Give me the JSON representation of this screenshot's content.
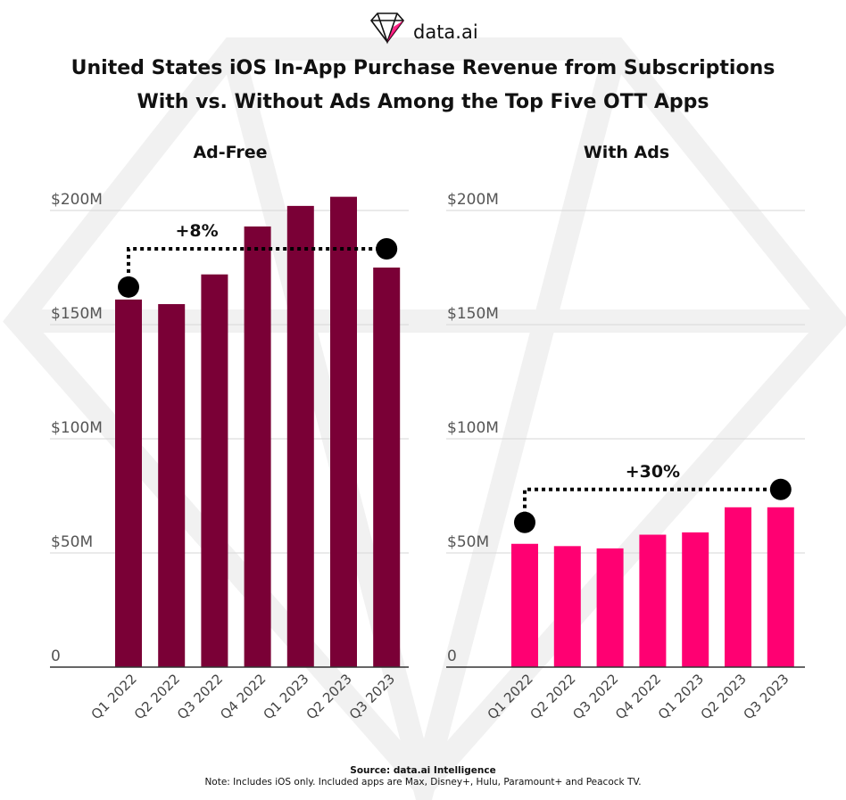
{
  "brand": {
    "name": "data.ai",
    "icon": "diamond-logo-icon"
  },
  "title_line1": "United States iOS In-App Purchase Revenue from Subscriptions",
  "title_line2": "With vs. Without Ads Among the Top Five OTT Apps",
  "footer": {
    "source": "Source: data.ai Intelligence",
    "note": "Note: Includes iOS only. Included apps are Max, Disney+, Hulu, Paramount+ and Peacock TV."
  },
  "chart_data": [
    {
      "type": "bar",
      "title": "Ad-Free",
      "categories": [
        "Q1 2022",
        "Q2 2022",
        "Q3 2022",
        "Q4 2022",
        "Q1 2023",
        "Q2 2023",
        "Q3 2023"
      ],
      "values": [
        161,
        159,
        172,
        193,
        202,
        206,
        175
      ],
      "unit": "$M",
      "ylim": [
        0,
        200
      ],
      "yticks": [
        {
          "value": 0,
          "label": "0"
        },
        {
          "value": 50,
          "label": "$50M"
        },
        {
          "value": 100,
          "label": "$100M"
        },
        {
          "value": 150,
          "label": "$150M"
        },
        {
          "value": 200,
          "label": "$200M"
        }
      ],
      "bar_color": "#7a0036",
      "grid": true,
      "annotation": {
        "text": "+8%",
        "from": "Q1 2022",
        "to": "Q3 2023"
      }
    },
    {
      "type": "bar",
      "title": "With Ads",
      "categories": [
        "Q1 2022",
        "Q2 2022",
        "Q3 2022",
        "Q4 2022",
        "Q1 2023",
        "Q2 2023",
        "Q3 2023"
      ],
      "values": [
        54,
        53,
        52,
        58,
        59,
        70,
        70
      ],
      "unit": "$M",
      "ylim": [
        0,
        200
      ],
      "yticks": [
        {
          "value": 0,
          "label": "0"
        },
        {
          "value": 50,
          "label": "$50M"
        },
        {
          "value": 100,
          "label": "$100M"
        },
        {
          "value": 150,
          "label": "$150M"
        },
        {
          "value": 200,
          "label": "$200M"
        }
      ],
      "bar_color": "#ff0072",
      "grid": true,
      "annotation": {
        "text": "+30%",
        "from": "Q1 2022",
        "to": "Q3 2023"
      }
    }
  ]
}
